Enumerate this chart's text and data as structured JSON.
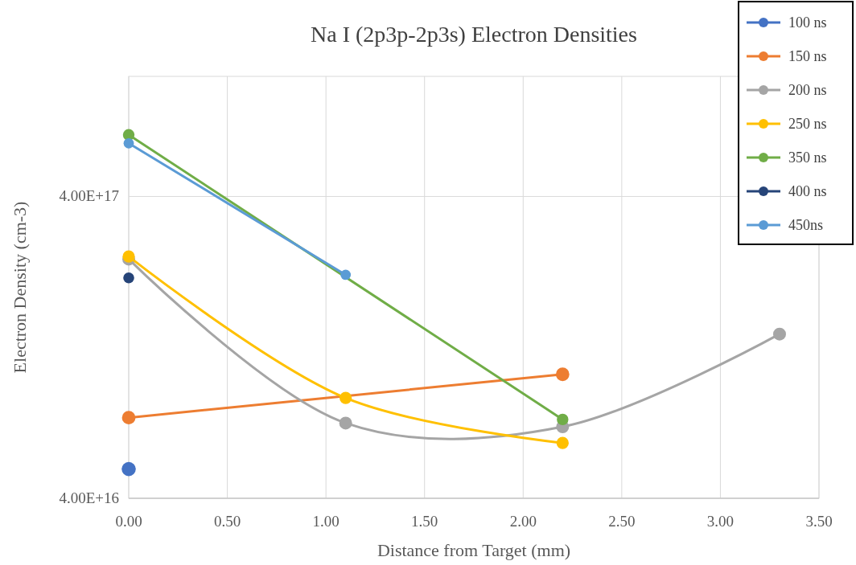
{
  "chart_data": {
    "type": "line",
    "title": "Na I (2p3p-2p3s) Electron Densities",
    "xlabel": "Distance from Target (mm)",
    "ylabel": "Electron Density (cm-3)",
    "log": "y",
    "grid": true,
    "legend": "top right",
    "marker": "circle",
    "xlim": [
      0,
      3.5
    ],
    "xticks": [
      {
        "value": 0,
        "label": "0.00"
      },
      {
        "value": 0.5,
        "label": "0.50"
      },
      {
        "value": 1,
        "label": "1.00"
      },
      {
        "value": 1.5,
        "label": "1.50"
      },
      {
        "value": 2,
        "label": "2.00"
      },
      {
        "value": 2.5,
        "label": "2.50"
      },
      {
        "value": 3,
        "label": "3.00"
      },
      {
        "value": 3.5,
        "label": "3.50"
      }
    ],
    "ylim": [
      4e+16,
      1e+18
    ],
    "yticks": [
      {
        "value": 4e+16,
        "label": "4.00E+16"
      },
      {
        "value": 4e+17,
        "label": "4.00E+17"
      }
    ],
    "series": [
      {
        "name": "100 ns",
        "color": "#4472c4",
        "x": [
          0
        ],
        "values": [
          5e+16
        ]
      },
      {
        "name": "150 ns",
        "color": "#ed7d31",
        "x": [
          0,
          2.2
        ],
        "values": [
          7.4e+16,
          1.03e+17
        ]
      },
      {
        "name": "200 ns",
        "color": "#a5a5a5",
        "x": [
          0,
          1.1,
          2.2,
          3.3
        ],
        "values": [
          2.48e+17,
          7.1e+16,
          6.9e+16,
          1.4e+17
        ]
      },
      {
        "name": "250 ns",
        "color": "#ffc000",
        "x": [
          0,
          1.1,
          2.2
        ],
        "values": [
          2.53e+17,
          8.6e+16,
          6.1e+16
        ]
      },
      {
        "name": "350 ns",
        "color": "#70ad47",
        "x": [
          0,
          2.2
        ],
        "values": [
          6.4e+17,
          7.3e+16
        ]
      },
      {
        "name": "400 ns",
        "color": "#264478",
        "x": [
          0
        ],
        "values": [
          2.15e+17
        ]
      },
      {
        "name": "450ns",
        "color": "#5b9bd5",
        "x": [
          0,
          1.1
        ],
        "values": [
          6e+17,
          2.2e+17
        ]
      }
    ]
  }
}
